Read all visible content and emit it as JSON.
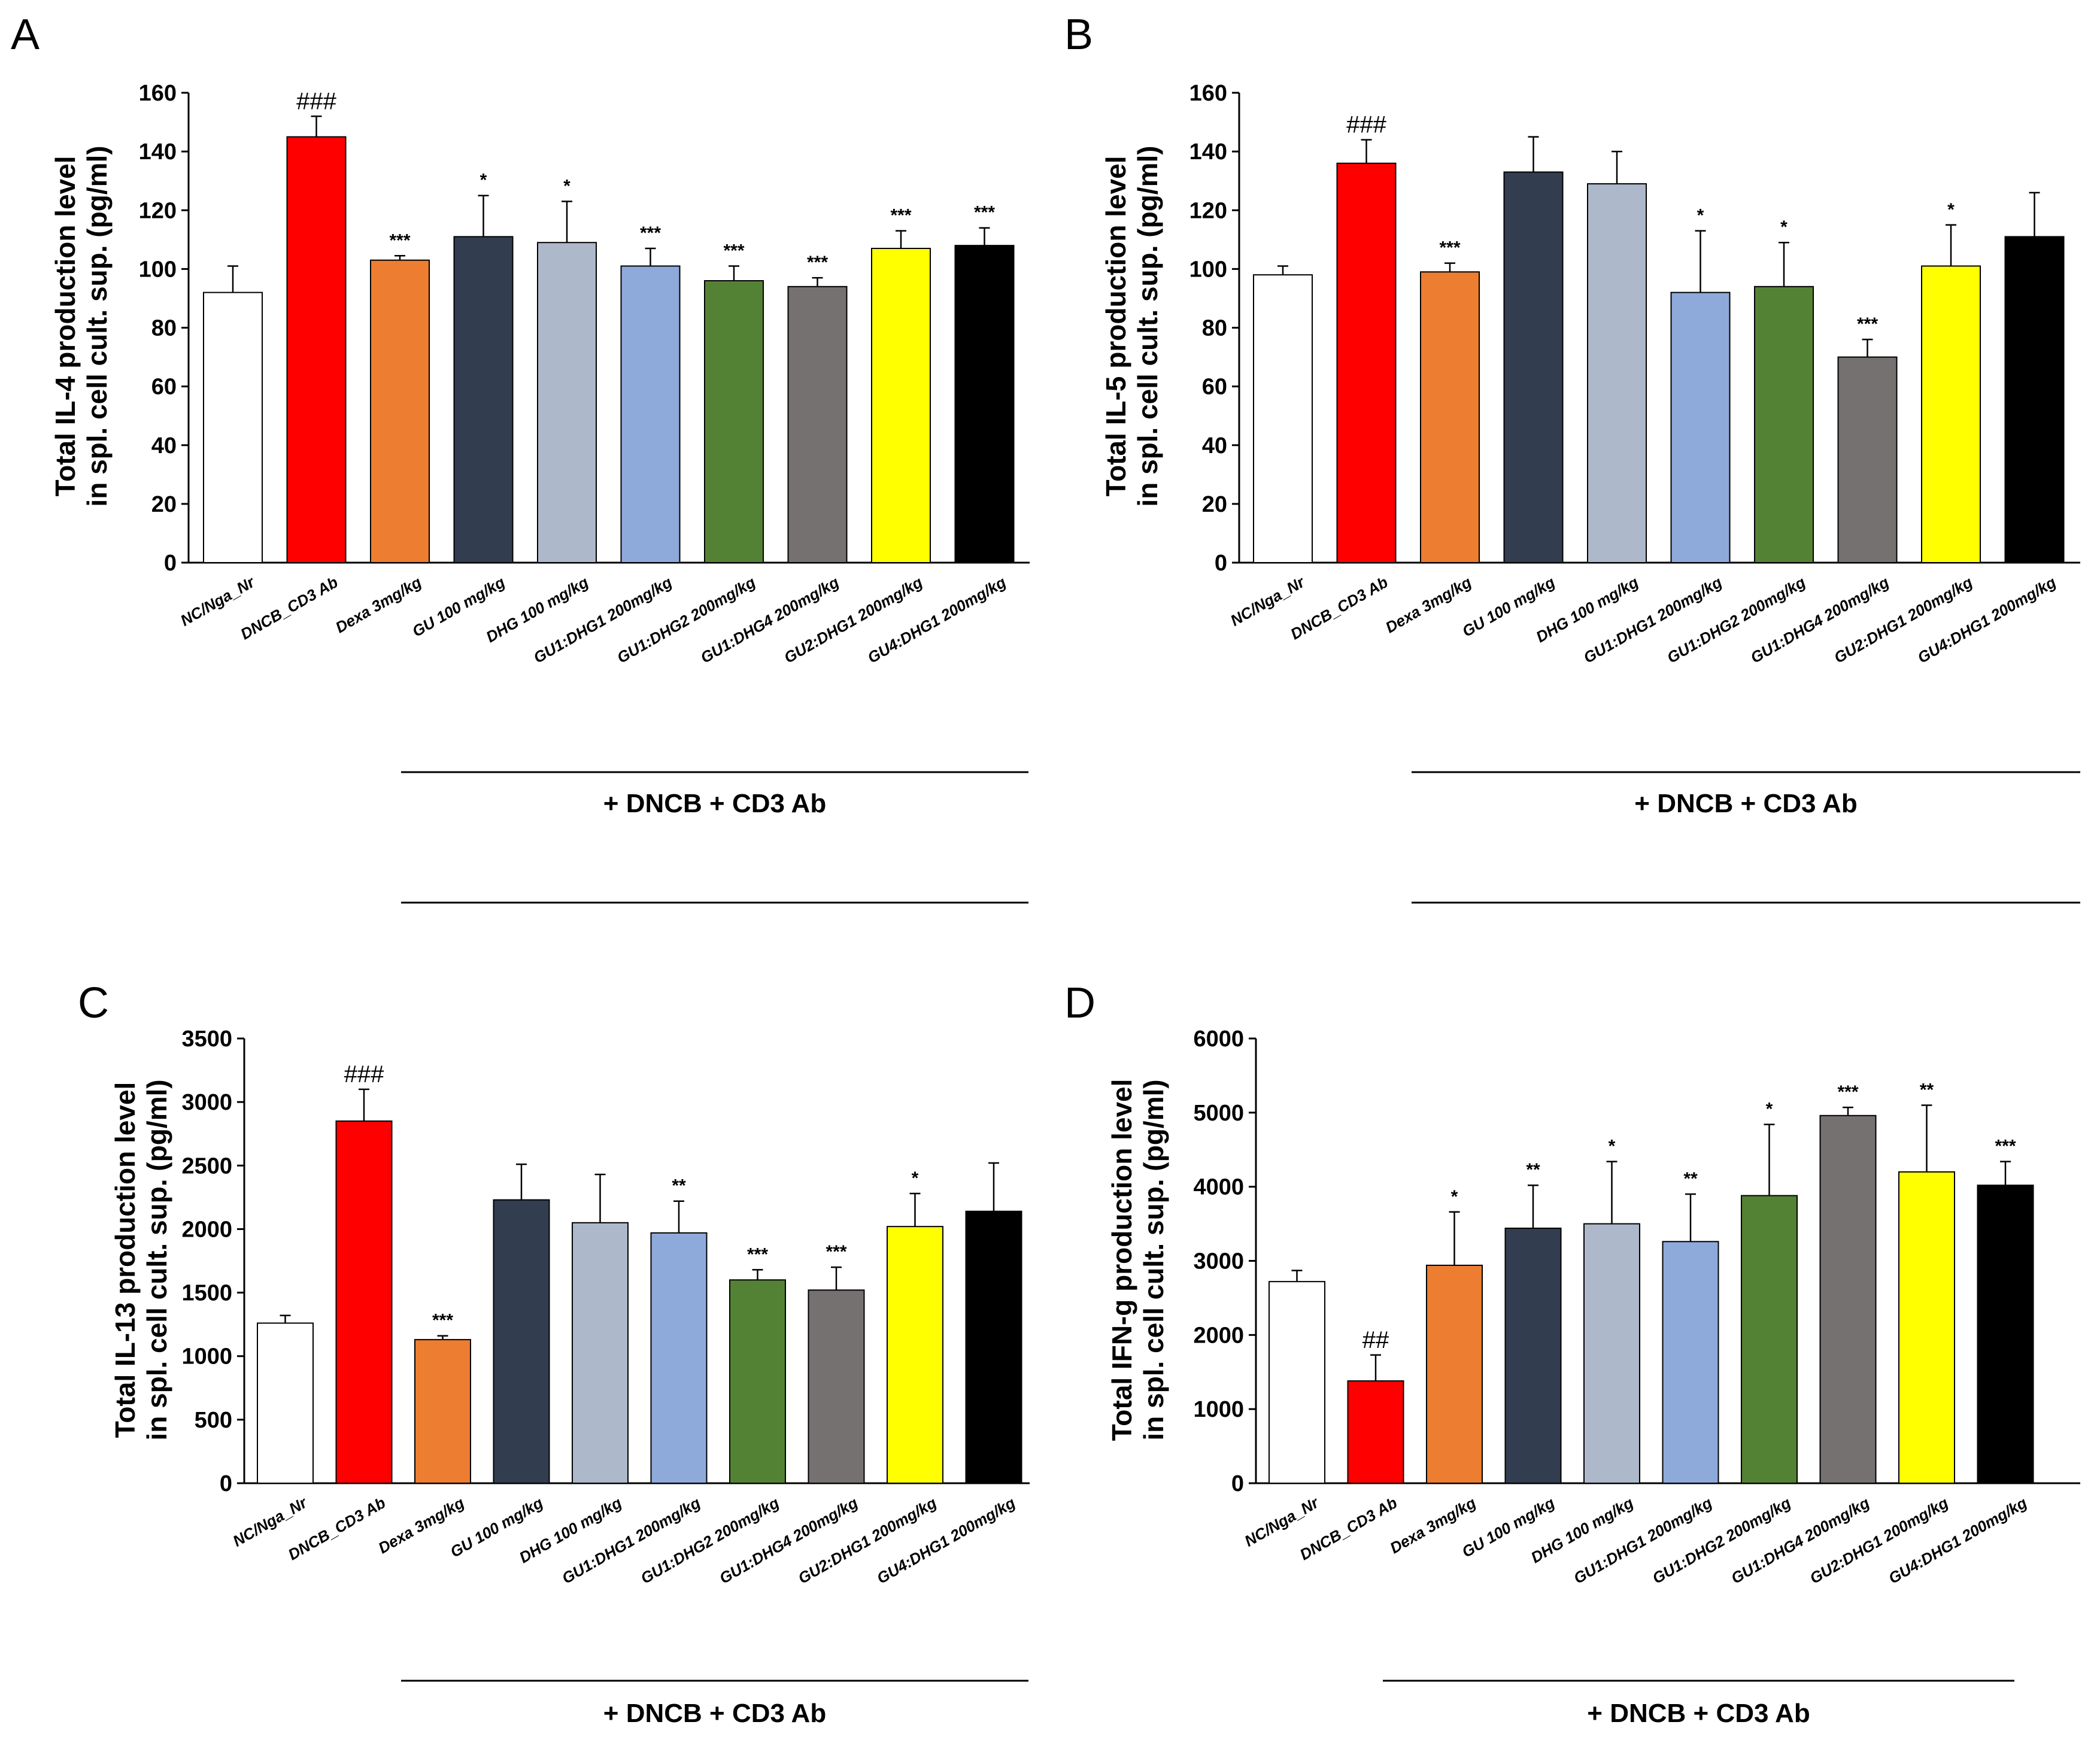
{
  "categories": [
    "NC/Nga_Nr",
    "DNCB_CD3 Ab",
    "Dexa 3mg/kg",
    "GU 100 mg/kg",
    "DHG 100 mg/kg",
    "GU1:DHG1 200mg/kg",
    "GU1:DHG2 200mg/kg",
    "GU1:DHG4 200mg/kg",
    "GU2:DHG1 200mg/kg",
    "GU4:DHG1 200mg/kg"
  ],
  "colors": [
    "#ffffff",
    "#ff0000",
    "#ed7d31",
    "#323e4f",
    "#adb9ca",
    "#8eaadb",
    "#548235",
    "#767171",
    "#ffff00",
    "#000000"
  ],
  "treatment_label": "+ DNCB + CD3 Ab",
  "chart_data": [
    {
      "panel": "A",
      "type": "bar",
      "title": "",
      "ylabel_line1": "Total  IL-4 production level",
      "ylabel_line2": "in spl. cell cult. sup.  (pg/ml)",
      "ylim": [
        0,
        160
      ],
      "yticks": [
        0,
        20,
        40,
        60,
        80,
        100,
        120,
        140,
        160
      ],
      "values": [
        92,
        145,
        103,
        111,
        109,
        101,
        96,
        94,
        107,
        108
      ],
      "errors": [
        9,
        7,
        1.5,
        14,
        14,
        6,
        5,
        3,
        6,
        6
      ],
      "significance": [
        "",
        "###",
        "***",
        "*",
        "*",
        "***",
        "***",
        "***",
        "***",
        "***"
      ]
    },
    {
      "panel": "B",
      "type": "bar",
      "title": "",
      "ylabel_line1": "Total  IL-5 production level",
      "ylabel_line2": "in spl. cell cult. sup.  (pg/ml)",
      "ylim": [
        0,
        160
      ],
      "yticks": [
        0,
        20,
        40,
        60,
        80,
        100,
        120,
        140,
        160
      ],
      "values": [
        98,
        136,
        99,
        133,
        129,
        92,
        94,
        70,
        101,
        111
      ],
      "errors": [
        3,
        8,
        3,
        12,
        11,
        21,
        15,
        6,
        14,
        15
      ],
      "significance": [
        "",
        "###",
        "***",
        "",
        "",
        "*",
        "*",
        "***",
        "*",
        ""
      ]
    },
    {
      "panel": "C",
      "type": "bar",
      "title": "",
      "ylabel_line1": "Total  IL-13 production level",
      "ylabel_line2": "in spl. cell cult. sup.  (pg/ml)",
      "ylim": [
        0,
        3500
      ],
      "yticks": [
        0,
        500,
        1000,
        1500,
        2000,
        2500,
        3000,
        3500
      ],
      "values": [
        1260,
        2850,
        1130,
        2230,
        2050,
        1970,
        1600,
        1520,
        2020,
        2140
      ],
      "errors": [
        60,
        250,
        30,
        280,
        380,
        250,
        80,
        180,
        260,
        380
      ],
      "significance": [
        "",
        "###",
        "***",
        "",
        "",
        "**",
        "***",
        "***",
        "*",
        ""
      ]
    },
    {
      "panel": "D",
      "type": "bar",
      "title": "",
      "ylabel_line1": "Total  IFN-g production level",
      "ylabel_line2": "in spl. cell cult. sup.  (pg/ml)",
      "ylim": [
        0,
        6000
      ],
      "yticks": [
        0,
        1000,
        2000,
        3000,
        4000,
        5000,
        6000
      ],
      "values": [
        2720,
        1380,
        2940,
        3440,
        3500,
        3260,
        3880,
        4960,
        4200,
        4020
      ],
      "errors": [
        150,
        350,
        720,
        580,
        840,
        640,
        960,
        110,
        900,
        320
      ],
      "significance": [
        "",
        "##",
        "*",
        "**",
        "*",
        "**",
        "*",
        "***",
        "**",
        "***"
      ]
    }
  ]
}
